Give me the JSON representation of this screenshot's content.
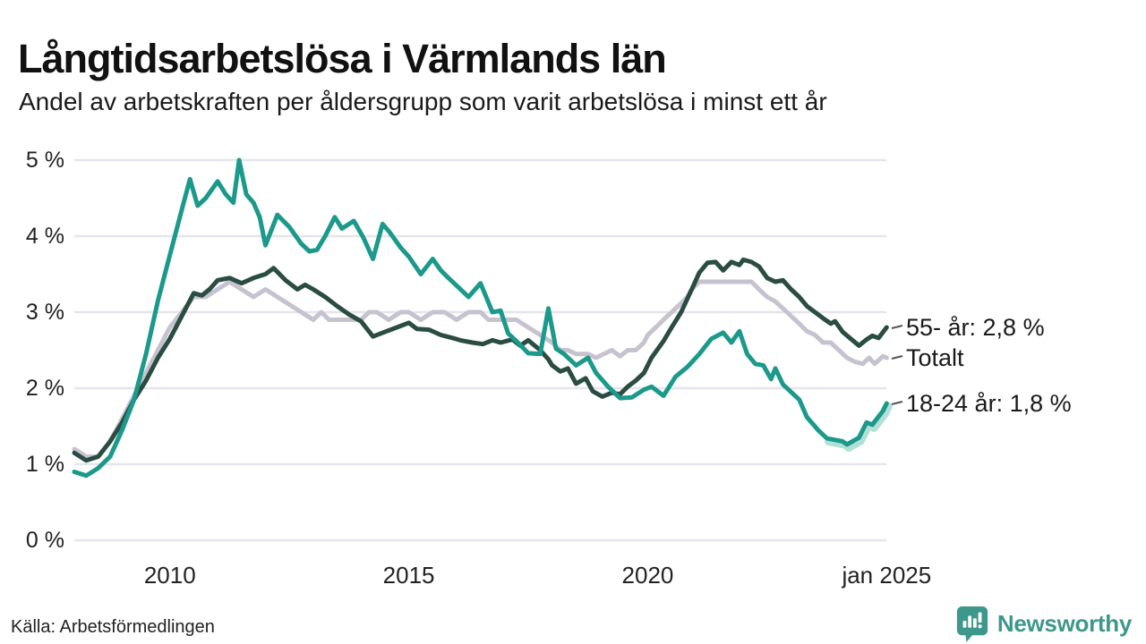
{
  "header": {
    "title": "Långtidsarbetslösa i Värmlands län",
    "subtitle": "Andel av arbetskraften per åldersgrupp som varit arbetslösa i minst ett år"
  },
  "footer": {
    "source": "Källa: Arbetsförmedlingen",
    "brand": "Newsworthy",
    "brand_color": "#3e978b"
  },
  "colors": {
    "grid": "#e6e5ee",
    "text": "#1a1a1a",
    "tick_text": "#222222",
    "connector": "#555555"
  },
  "chart_data": {
    "type": "line",
    "title": "Långtidsarbetslösa i Värmlands län",
    "subtitle": "Andel av arbetskraften per åldersgrupp som varit arbetslösa i minst ett år",
    "source": "Källa: Arbetsförmedlingen",
    "grid": true,
    "legend_position": "right-end-labels",
    "x_axis": {
      "range": [
        2008.0,
        2025.05
      ],
      "ticks": [
        {
          "t": 2010,
          "label": "2010"
        },
        {
          "t": 2015,
          "label": "2015"
        },
        {
          "t": 2020,
          "label": "2020"
        },
        {
          "t": 2025,
          "label": "jan 2025"
        }
      ]
    },
    "y_axis": {
      "range": [
        0,
        5
      ],
      "unit": "%",
      "ticks": [
        {
          "v": 0,
          "label": "0 %"
        },
        {
          "v": 1,
          "label": "1 %"
        },
        {
          "v": 2,
          "label": "2 %"
        },
        {
          "v": 3,
          "label": "3 %"
        },
        {
          "v": 4,
          "label": "4 %"
        },
        {
          "v": 5,
          "label": "5 %"
        }
      ]
    },
    "series": [
      {
        "name": "Totalt",
        "end_label": "Totalt",
        "end_value": 2.4,
        "color": "#c6c2d0",
        "width": 5,
        "points": [
          [
            2008.0,
            1.2
          ],
          [
            2008.25,
            1.1
          ],
          [
            2008.5,
            1.1
          ],
          [
            2008.75,
            1.3
          ],
          [
            2009.0,
            1.6
          ],
          [
            2009.25,
            1.9
          ],
          [
            2009.5,
            2.2
          ],
          [
            2009.75,
            2.5
          ],
          [
            2010.0,
            2.8
          ],
          [
            2010.25,
            3.0
          ],
          [
            2010.5,
            3.2
          ],
          [
            2010.75,
            3.2
          ],
          [
            2011.0,
            3.3
          ],
          [
            2011.25,
            3.4
          ],
          [
            2011.5,
            3.3
          ],
          [
            2011.75,
            3.2
          ],
          [
            2012.0,
            3.3
          ],
          [
            2012.25,
            3.2
          ],
          [
            2012.5,
            3.1
          ],
          [
            2012.75,
            3.0
          ],
          [
            2013.0,
            2.9
          ],
          [
            2013.17,
            3.0
          ],
          [
            2013.33,
            2.9
          ],
          [
            2013.58,
            2.9
          ],
          [
            2013.83,
            2.9
          ],
          [
            2014.0,
            2.9
          ],
          [
            2014.17,
            3.0
          ],
          [
            2014.33,
            3.0
          ],
          [
            2014.58,
            2.9
          ],
          [
            2014.83,
            3.0
          ],
          [
            2015.0,
            3.0
          ],
          [
            2015.25,
            2.9
          ],
          [
            2015.5,
            3.0
          ],
          [
            2015.75,
            3.0
          ],
          [
            2016.0,
            2.9
          ],
          [
            2016.25,
            3.0
          ],
          [
            2016.5,
            3.0
          ],
          [
            2016.67,
            2.9
          ],
          [
            2016.83,
            2.9
          ],
          [
            2017.0,
            2.9
          ],
          [
            2017.25,
            2.9
          ],
          [
            2017.5,
            2.8
          ],
          [
            2017.75,
            2.7
          ],
          [
            2018.0,
            2.6
          ],
          [
            2018.17,
            2.5
          ],
          [
            2018.33,
            2.5
          ],
          [
            2018.5,
            2.45
          ],
          [
            2018.75,
            2.45
          ],
          [
            2018.92,
            2.4
          ],
          [
            2019.08,
            2.45
          ],
          [
            2019.25,
            2.5
          ],
          [
            2019.42,
            2.42
          ],
          [
            2019.58,
            2.5
          ],
          [
            2019.75,
            2.5
          ],
          [
            2019.92,
            2.6
          ],
          [
            2020.0,
            2.7
          ],
          [
            2020.17,
            2.8
          ],
          [
            2020.33,
            2.9
          ],
          [
            2020.5,
            3.0
          ],
          [
            2020.67,
            3.1
          ],
          [
            2020.83,
            3.2
          ],
          [
            2020.92,
            3.3
          ],
          [
            2021.08,
            3.4
          ],
          [
            2021.33,
            3.4
          ],
          [
            2021.58,
            3.4
          ],
          [
            2021.83,
            3.4
          ],
          [
            2022.0,
            3.4
          ],
          [
            2022.17,
            3.4
          ],
          [
            2022.33,
            3.3
          ],
          [
            2022.5,
            3.2
          ],
          [
            2022.67,
            3.14
          ],
          [
            2022.83,
            3.05
          ],
          [
            2023.0,
            2.95
          ],
          [
            2023.17,
            2.85
          ],
          [
            2023.33,
            2.75
          ],
          [
            2023.5,
            2.7
          ],
          [
            2023.67,
            2.6
          ],
          [
            2023.83,
            2.6
          ],
          [
            2024.0,
            2.5
          ],
          [
            2024.17,
            2.4
          ],
          [
            2024.33,
            2.35
          ],
          [
            2024.5,
            2.32
          ],
          [
            2024.63,
            2.4
          ],
          [
            2024.75,
            2.32
          ],
          [
            2024.92,
            2.42
          ],
          [
            2025.0,
            2.4
          ]
        ]
      },
      {
        "name": "55- år",
        "end_label": "55- år: 2,8 %",
        "end_value": 2.8,
        "color": "#2a4c41",
        "width": 5,
        "points": [
          [
            2008.0,
            1.15
          ],
          [
            2008.25,
            1.05
          ],
          [
            2008.5,
            1.1
          ],
          [
            2008.75,
            1.3
          ],
          [
            2009.0,
            1.55
          ],
          [
            2009.25,
            1.85
          ],
          [
            2009.5,
            2.1
          ],
          [
            2009.75,
            2.4
          ],
          [
            2010.0,
            2.65
          ],
          [
            2010.25,
            2.95
          ],
          [
            2010.5,
            3.25
          ],
          [
            2010.67,
            3.22
          ],
          [
            2010.83,
            3.3
          ],
          [
            2011.0,
            3.42
          ],
          [
            2011.25,
            3.45
          ],
          [
            2011.5,
            3.38
          ],
          [
            2011.75,
            3.45
          ],
          [
            2012.0,
            3.5
          ],
          [
            2012.17,
            3.58
          ],
          [
            2012.42,
            3.42
          ],
          [
            2012.67,
            3.3
          ],
          [
            2012.83,
            3.36
          ],
          [
            2013.0,
            3.3
          ],
          [
            2013.25,
            3.2
          ],
          [
            2013.5,
            3.08
          ],
          [
            2013.75,
            2.97
          ],
          [
            2014.0,
            2.88
          ],
          [
            2014.25,
            2.68
          ],
          [
            2014.5,
            2.74
          ],
          [
            2014.75,
            2.8
          ],
          [
            2015.0,
            2.86
          ],
          [
            2015.17,
            2.78
          ],
          [
            2015.42,
            2.77
          ],
          [
            2015.67,
            2.7
          ],
          [
            2015.92,
            2.66
          ],
          [
            2016.08,
            2.63
          ],
          [
            2016.33,
            2.6
          ],
          [
            2016.55,
            2.58
          ],
          [
            2016.75,
            2.63
          ],
          [
            2016.92,
            2.6
          ],
          [
            2017.17,
            2.64
          ],
          [
            2017.33,
            2.56
          ],
          [
            2017.5,
            2.63
          ],
          [
            2017.75,
            2.5
          ],
          [
            2017.92,
            2.38
          ],
          [
            2018.0,
            2.3
          ],
          [
            2018.17,
            2.22
          ],
          [
            2018.33,
            2.26
          ],
          [
            2018.5,
            2.06
          ],
          [
            2018.7,
            2.13
          ],
          [
            2018.85,
            1.96
          ],
          [
            2019.05,
            1.89
          ],
          [
            2019.25,
            1.94
          ],
          [
            2019.42,
            1.92
          ],
          [
            2019.58,
            2.02
          ],
          [
            2019.75,
            2.1
          ],
          [
            2019.92,
            2.2
          ],
          [
            2020.08,
            2.4
          ],
          [
            2020.33,
            2.62
          ],
          [
            2020.5,
            2.8
          ],
          [
            2020.7,
            3.0
          ],
          [
            2020.92,
            3.3
          ],
          [
            2021.08,
            3.52
          ],
          [
            2021.25,
            3.65
          ],
          [
            2021.42,
            3.66
          ],
          [
            2021.58,
            3.55
          ],
          [
            2021.75,
            3.66
          ],
          [
            2021.92,
            3.62
          ],
          [
            2022.0,
            3.69
          ],
          [
            2022.17,
            3.66
          ],
          [
            2022.33,
            3.6
          ],
          [
            2022.5,
            3.45
          ],
          [
            2022.67,
            3.4
          ],
          [
            2022.83,
            3.42
          ],
          [
            2023.0,
            3.3
          ],
          [
            2023.17,
            3.2
          ],
          [
            2023.33,
            3.08
          ],
          [
            2023.5,
            3.0
          ],
          [
            2023.67,
            2.92
          ],
          [
            2023.83,
            2.85
          ],
          [
            2023.92,
            2.88
          ],
          [
            2024.08,
            2.74
          ],
          [
            2024.25,
            2.65
          ],
          [
            2024.42,
            2.56
          ],
          [
            2024.58,
            2.64
          ],
          [
            2024.7,
            2.69
          ],
          [
            2024.83,
            2.66
          ],
          [
            2025.0,
            2.8
          ]
        ]
      },
      {
        "name": "18-24 år",
        "end_label": "18-24 år: 1,8 %",
        "end_value": 1.8,
        "color": "#1b998a",
        "width": 5,
        "halo_from": 2023.7,
        "halo_color": "#9ed8cc",
        "points": [
          [
            2008.0,
            0.9
          ],
          [
            2008.25,
            0.85
          ],
          [
            2008.5,
            0.95
          ],
          [
            2008.75,
            1.1
          ],
          [
            2009.0,
            1.45
          ],
          [
            2009.25,
            1.85
          ],
          [
            2009.5,
            2.45
          ],
          [
            2009.75,
            3.15
          ],
          [
            2010.0,
            3.75
          ],
          [
            2010.25,
            4.35
          ],
          [
            2010.42,
            4.75
          ],
          [
            2010.58,
            4.4
          ],
          [
            2010.75,
            4.5
          ],
          [
            2011.0,
            4.72
          ],
          [
            2011.17,
            4.55
          ],
          [
            2011.33,
            4.44
          ],
          [
            2011.45,
            5.0
          ],
          [
            2011.6,
            4.55
          ],
          [
            2011.75,
            4.44
          ],
          [
            2011.88,
            4.25
          ],
          [
            2012.0,
            3.88
          ],
          [
            2012.25,
            4.28
          ],
          [
            2012.5,
            4.12
          ],
          [
            2012.75,
            3.9
          ],
          [
            2012.92,
            3.8
          ],
          [
            2013.08,
            3.82
          ],
          [
            2013.25,
            4.0
          ],
          [
            2013.45,
            4.25
          ],
          [
            2013.6,
            4.1
          ],
          [
            2013.85,
            4.2
          ],
          [
            2014.05,
            3.98
          ],
          [
            2014.25,
            3.7
          ],
          [
            2014.45,
            4.16
          ],
          [
            2014.6,
            4.05
          ],
          [
            2014.83,
            3.85
          ],
          [
            2015.0,
            3.73
          ],
          [
            2015.25,
            3.5
          ],
          [
            2015.5,
            3.7
          ],
          [
            2015.67,
            3.55
          ],
          [
            2015.83,
            3.45
          ],
          [
            2016.0,
            3.35
          ],
          [
            2016.25,
            3.2
          ],
          [
            2016.5,
            3.38
          ],
          [
            2016.75,
            3.0
          ],
          [
            2016.92,
            3.02
          ],
          [
            2017.08,
            2.72
          ],
          [
            2017.25,
            2.62
          ],
          [
            2017.5,
            2.46
          ],
          [
            2017.75,
            2.45
          ],
          [
            2017.92,
            3.05
          ],
          [
            2018.08,
            2.52
          ],
          [
            2018.25,
            2.45
          ],
          [
            2018.5,
            2.3
          ],
          [
            2018.75,
            2.4
          ],
          [
            2018.92,
            2.2
          ],
          [
            2019.17,
            2.02
          ],
          [
            2019.42,
            1.87
          ],
          [
            2019.67,
            1.88
          ],
          [
            2019.92,
            1.98
          ],
          [
            2020.08,
            2.02
          ],
          [
            2020.33,
            1.9
          ],
          [
            2020.58,
            2.15
          ],
          [
            2020.83,
            2.28
          ],
          [
            2021.08,
            2.45
          ],
          [
            2021.33,
            2.65
          ],
          [
            2021.58,
            2.73
          ],
          [
            2021.75,
            2.6
          ],
          [
            2021.92,
            2.75
          ],
          [
            2022.08,
            2.45
          ],
          [
            2022.25,
            2.32
          ],
          [
            2022.42,
            2.3
          ],
          [
            2022.58,
            2.12
          ],
          [
            2022.67,
            2.26
          ],
          [
            2022.83,
            2.05
          ],
          [
            2023.0,
            1.95
          ],
          [
            2023.17,
            1.85
          ],
          [
            2023.33,
            1.62
          ],
          [
            2023.58,
            1.44
          ],
          [
            2023.75,
            1.34
          ],
          [
            2023.92,
            1.32
          ],
          [
            2024.08,
            1.3
          ],
          [
            2024.17,
            1.26
          ],
          [
            2024.42,
            1.35
          ],
          [
            2024.58,
            1.55
          ],
          [
            2024.7,
            1.52
          ],
          [
            2024.92,
            1.7
          ],
          [
            2025.0,
            1.8
          ]
        ]
      }
    ]
  }
}
